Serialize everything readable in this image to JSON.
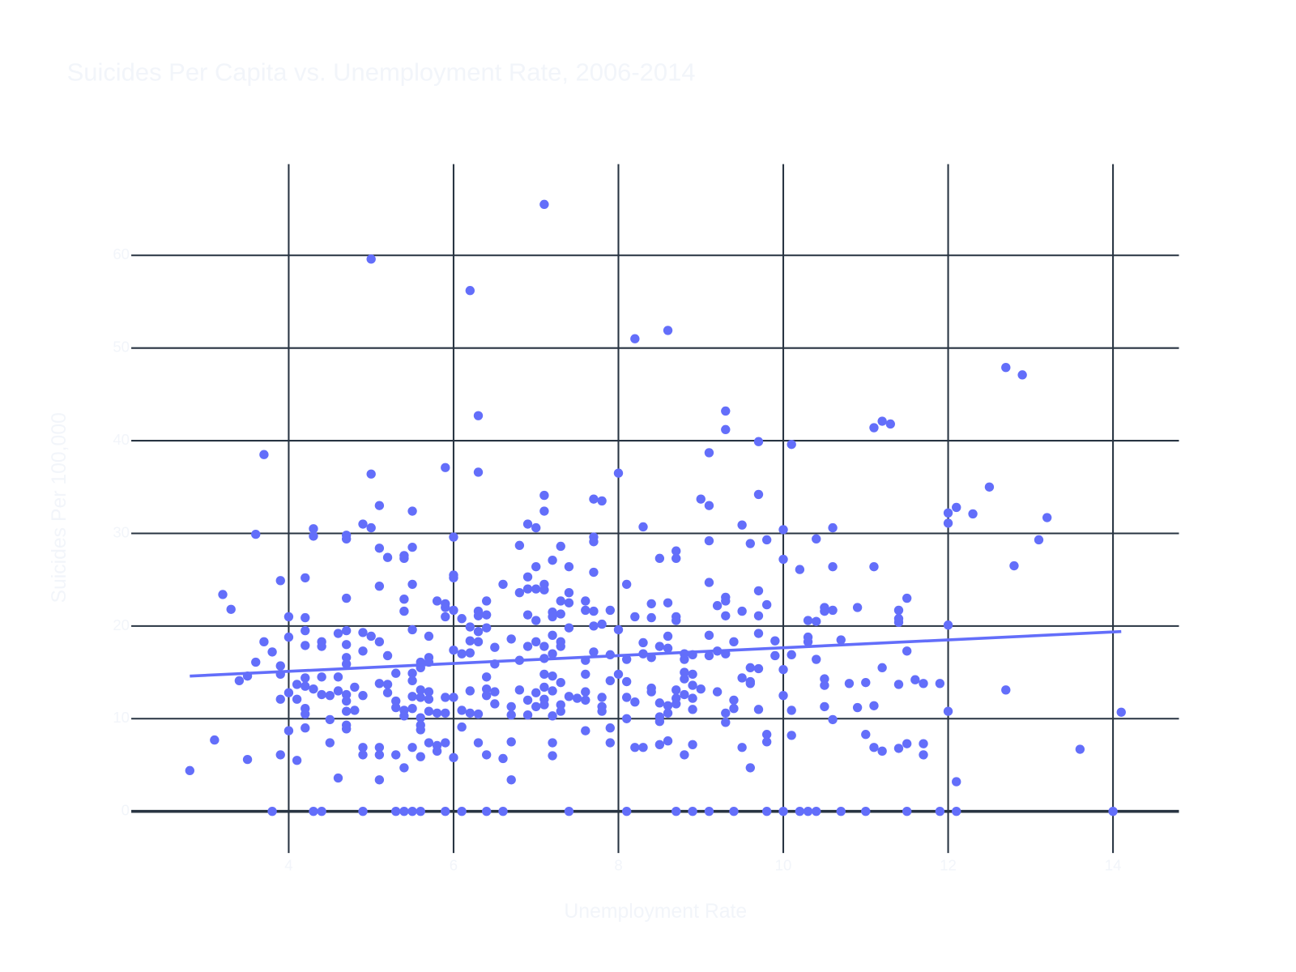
{
  "chart_data": {
    "type": "scatter",
    "title": "Suicides Per Capita vs. Unemployment Rate, 2006-2014",
    "x_label": "Unemployment Rate",
    "y_label": "Suicides Per 100,000",
    "color": "#636efa",
    "grid": true,
    "xlim": [
      2.09,
      14.8
    ],
    "ylim": [
      -4.5,
      69.85
    ],
    "xticks": [
      4,
      6,
      8,
      10,
      12,
      14
    ],
    "yticks": [
      0,
      10,
      20,
      30,
      40,
      50,
      60
    ],
    "trendline": {
      "x": [
        2.8,
        14.1
      ],
      "y": [
        14.6,
        19.4
      ]
    },
    "x": [
      2.8,
      3.1,
      3.2,
      3.3,
      3.4,
      3.5,
      3.5,
      3.6,
      3.6,
      3.7,
      3.7,
      3.8,
      3.8,
      3.9,
      3.9,
      3.9,
      3.9,
      3.9,
      4.0,
      4.0,
      4.0,
      4.0,
      4.1,
      4.1,
      4.1,
      4.2,
      4.2,
      4.2,
      4.2,
      4.2,
      4.2,
      4.2,
      4.2,
      4.2,
      4.3,
      4.3,
      4.3,
      4.3,
      4.4,
      4.4,
      4.4,
      4.4,
      4.4,
      4.5,
      4.5,
      4.5,
      4.6,
      4.6,
      4.6,
      4.6,
      4.7,
      4.7,
      4.7,
      4.7,
      4.7,
      4.7,
      4.7,
      4.7,
      4.7,
      4.7,
      4.7,
      4.7,
      4.8,
      4.8,
      4.9,
      4.9,
      4.9,
      4.9,
      4.9,
      4.9,
      4.9,
      5.0,
      5.0,
      5.0,
      5.0,
      5.1,
      5.1,
      5.1,
      5.1,
      5.1,
      5.1,
      5.1,
      5.1,
      5.2,
      5.2,
      5.2,
      5.2,
      5.3,
      5.3,
      5.3,
      5.3,
      5.3,
      5.4,
      5.4,
      5.4,
      5.4,
      5.4,
      5.4,
      5.4,
      5.4,
      5.5,
      5.5,
      5.5,
      5.5,
      5.5,
      5.5,
      5.5,
      5.5,
      5.5,
      5.5,
      5.6,
      5.6,
      5.6,
      5.6,
      5.6,
      5.6,
      5.6,
      5.6,
      5.6,
      5.7,
      5.7,
      5.7,
      5.7,
      5.7,
      5.7,
      5.7,
      5.8,
      5.8,
      5.8,
      5.8,
      5.9,
      5.9,
      5.9,
      5.9,
      5.9,
      5.9,
      5.9,
      5.9,
      6.0,
      6.0,
      6.0,
      6.0,
      6.0,
      6.0,
      6.0,
      6.1,
      6.1,
      6.1,
      6.1,
      6.1,
      6.2,
      6.2,
      6.2,
      6.2,
      6.2,
      6.2,
      6.3,
      6.3,
      6.3,
      6.3,
      6.3,
      6.3,
      6.3,
      6.3,
      6.4,
      6.4,
      6.4,
      6.4,
      6.4,
      6.4,
      6.4,
      6.4,
      6.5,
      6.5,
      6.5,
      6.5,
      6.6,
      6.6,
      6.6,
      6.7,
      6.7,
      6.7,
      6.7,
      6.7,
      6.8,
      6.8,
      6.8,
      6.8,
      6.9,
      6.9,
      6.9,
      6.9,
      6.9,
      6.9,
      6.9,
      7.0,
      7.0,
      7.0,
      7.0,
      7.0,
      7.0,
      7.0,
      7.1,
      7.1,
      7.1,
      7.1,
      7.1,
      7.1,
      7.1,
      7.1,
      7.1,
      7.1,
      7.1,
      7.2,
      7.2,
      7.2,
      7.2,
      7.2,
      7.2,
      7.2,
      7.2,
      7.2,
      7.2,
      7.3,
      7.3,
      7.3,
      7.3,
      7.3,
      7.3,
      7.3,
      7.3,
      7.4,
      7.4,
      7.4,
      7.4,
      7.4,
      7.4,
      7.5,
      7.6,
      7.6,
      7.6,
      7.6,
      7.6,
      7.6,
      7.6,
      7.7,
      7.7,
      7.7,
      7.7,
      7.7,
      7.7,
      7.7,
      7.8,
      7.8,
      7.8,
      7.8,
      7.8,
      7.9,
      7.9,
      7.9,
      7.9,
      7.9,
      8.0,
      8.0,
      8.0,
      8.1,
      8.1,
      8.1,
      8.1,
      8.1,
      8.1,
      8.2,
      8.2,
      8.2,
      8.2,
      8.3,
      8.3,
      8.3,
      8.3,
      8.4,
      8.4,
      8.4,
      8.4,
      8.4,
      8.5,
      8.5,
      8.5,
      8.5,
      8.5,
      8.5,
      8.6,
      8.6,
      8.6,
      8.6,
      8.6,
      8.6,
      8.6,
      8.7,
      8.7,
      8.7,
      8.7,
      8.7,
      8.7,
      8.7,
      8.7,
      8.8,
      8.8,
      8.8,
      8.8,
      8.8,
      8.8,
      8.9,
      8.9,
      8.9,
      8.9,
      8.9,
      8.9,
      8.9,
      9.0,
      9.0,
      9.1,
      9.1,
      9.1,
      9.1,
      9.1,
      9.1,
      9.1,
      9.2,
      9.2,
      9.2,
      9.3,
      9.3,
      9.3,
      9.3,
      9.3,
      9.3,
      9.3,
      9.3,
      9.4,
      9.4,
      9.4,
      9.4,
      9.5,
      9.5,
      9.5,
      9.5,
      9.6,
      9.6,
      9.6,
      9.6,
      9.6,
      9.7,
      9.7,
      9.7,
      9.7,
      9.7,
      9.7,
      9.7,
      9.8,
      9.8,
      9.8,
      9.8,
      9.8,
      9.9,
      9.9,
      10.0,
      10.0,
      10.0,
      10.0,
      10.0,
      10.1,
      10.1,
      10.1,
      10.1,
      10.2,
      10.2,
      10.3,
      10.3,
      10.3,
      10.3,
      10.4,
      10.4,
      10.4,
      10.4,
      10.5,
      10.5,
      10.5,
      10.5,
      10.5,
      10.6,
      10.6,
      10.6,
      10.6,
      10.7,
      10.7,
      10.8,
      10.9,
      10.9,
      11.0,
      11.0,
      11.0,
      11.1,
      11.1,
      11.1,
      11.1,
      11.2,
      11.2,
      11.2,
      11.3,
      11.4,
      11.4,
      11.4,
      11.4,
      11.4,
      11.5,
      11.5,
      11.5,
      11.5,
      11.6,
      11.7,
      11.7,
      11.7,
      11.9,
      11.9,
      12.0,
      12.0,
      12.0,
      12.0,
      12.1,
      12.1,
      12.1,
      12.3,
      12.5,
      12.7,
      12.7,
      12.8,
      12.9,
      13.1,
      13.2,
      13.6,
      14.0,
      14.1
    ],
    "values": [
      4.4,
      7.7,
      23.4,
      21.8,
      14.1,
      14.6,
      5.6,
      16.1,
      29.9,
      38.5,
      18.3,
      17.2,
      0,
      24.9,
      15.7,
      14.8,
      12.1,
      6.1,
      21.0,
      18.8,
      12.8,
      8.7,
      13.7,
      12.1,
      5.5,
      25.2,
      20.9,
      19.5,
      17.9,
      14.4,
      13.5,
      11.1,
      10.5,
      9.0,
      30.5,
      29.7,
      13.2,
      0,
      18.3,
      17.8,
      14.5,
      12.6,
      0,
      12.5,
      9.9,
      7.4,
      19.2,
      14.5,
      13.0,
      3.6,
      29.8,
      29.4,
      23.0,
      19.5,
      18.0,
      16.6,
      15.9,
      12.6,
      11.9,
      10.8,
      9.3,
      8.9,
      13.4,
      10.9,
      31.0,
      19.3,
      17.3,
      12.5,
      6.9,
      6.1,
      0,
      59.6,
      36.4,
      30.6,
      18.9,
      33.0,
      28.4,
      24.3,
      18.3,
      13.8,
      6.9,
      6.1,
      3.4,
      27.4,
      16.8,
      13.7,
      12.8,
      14.9,
      11.9,
      11.2,
      6.1,
      0,
      27.6,
      27.3,
      22.9,
      21.6,
      10.9,
      10.3,
      4.7,
      0,
      32.4,
      28.5,
      24.5,
      19.6,
      14.9,
      14.1,
      12.4,
      11.1,
      6.9,
      0,
      16.1,
      15.5,
      13.1,
      12.3,
      10.1,
      9.3,
      8.8,
      5.9,
      0,
      18.9,
      16.6,
      16.1,
      12.9,
      12.1,
      10.8,
      7.4,
      22.7,
      10.6,
      7.1,
      6.5,
      37.1,
      22.4,
      22.0,
      21.0,
      12.3,
      10.6,
      7.4,
      0,
      29.6,
      25.5,
      25.2,
      21.7,
      17.4,
      12.3,
      5.8,
      20.8,
      17.0,
      10.9,
      9.1,
      0,
      56.2,
      19.9,
      18.4,
      17.1,
      13.0,
      10.6,
      42.7,
      36.6,
      21.6,
      21.1,
      19.4,
      18.3,
      10.5,
      7.4,
      22.7,
      21.2,
      19.8,
      14.5,
      13.2,
      12.5,
      6.1,
      0,
      17.7,
      15.9,
      12.9,
      11.6,
      24.5,
      5.7,
      0,
      18.6,
      11.3,
      10.4,
      7.5,
      3.4,
      28.7,
      23.6,
      16.3,
      13.1,
      31.0,
      25.3,
      24.0,
      21.2,
      17.8,
      12.0,
      10.4,
      30.6,
      26.4,
      24.0,
      20.6,
      18.3,
      12.8,
      11.3,
      65.5,
      34.1,
      32.4,
      24.5,
      23.9,
      17.8,
      16.5,
      14.8,
      13.4,
      12.1,
      11.5,
      27.1,
      21.5,
      21.0,
      19.0,
      17.0,
      14.6,
      13.0,
      10.3,
      7.4,
      6.0,
      28.6,
      22.7,
      21.3,
      18.3,
      17.8,
      13.9,
      11.5,
      10.8,
      26.4,
      23.6,
      22.5,
      19.8,
      12.4,
      0,
      12.2,
      22.7,
      21.7,
      16.3,
      14.8,
      12.9,
      12.0,
      8.7,
      33.7,
      29.6,
      29.1,
      25.8,
      21.6,
      20.0,
      17.2,
      33.5,
      20.2,
      12.3,
      11.3,
      10.8,
      21.7,
      16.9,
      14.1,
      9.0,
      7.4,
      36.5,
      19.6,
      14.8,
      24.5,
      16.4,
      14.0,
      12.3,
      10.0,
      0,
      51.0,
      21.0,
      11.8,
      6.9,
      30.7,
      18.2,
      17.0,
      6.9,
      22.4,
      20.9,
      16.6,
      13.3,
      12.9,
      27.3,
      17.8,
      11.7,
      10.2,
      9.7,
      7.2,
      51.9,
      22.5,
      18.9,
      17.6,
      11.4,
      10.6,
      7.6,
      28.1,
      27.3,
      21.0,
      20.6,
      13.1,
      12.2,
      11.6,
      0,
      17.0,
      16.4,
      15.0,
      14.3,
      12.6,
      6.1,
      16.9,
      14.8,
      13.6,
      12.2,
      11.0,
      7.2,
      0,
      33.7,
      13.2,
      38.7,
      33.0,
      29.2,
      24.7,
      19.0,
      16.8,
      0,
      22.2,
      17.3,
      12.9,
      43.2,
      41.2,
      23.1,
      22.7,
      21.1,
      17.0,
      10.6,
      9.6,
      18.3,
      12.0,
      11.1,
      0,
      30.9,
      21.6,
      14.4,
      6.9,
      28.9,
      15.5,
      14.0,
      13.8,
      4.7,
      39.9,
      34.2,
      23.8,
      21.1,
      19.2,
      15.4,
      11.0,
      29.3,
      22.3,
      8.3,
      7.5,
      0,
      18.4,
      16.8,
      30.4,
      27.2,
      15.3,
      12.5,
      0,
      39.6,
      16.9,
      10.9,
      8.2,
      26.1,
      0,
      20.6,
      18.8,
      18.3,
      0,
      29.4,
      20.5,
      16.4,
      0,
      22.0,
      21.6,
      14.3,
      13.6,
      11.3,
      30.6,
      26.4,
      21.7,
      9.9,
      18.5,
      0,
      13.8,
      22.0,
      11.2,
      13.9,
      8.3,
      0,
      41.4,
      26.4,
      11.4,
      6.9,
      42.1,
      15.5,
      6.5,
      41.8,
      21.7,
      20.8,
      20.4,
      13.7,
      6.8,
      23.0,
      17.3,
      7.3,
      0,
      14.2,
      13.8,
      7.3,
      6.1,
      13.8,
      0,
      32.2,
      31.1,
      20.1,
      10.8,
      32.8,
      3.2,
      0,
      32.1,
      35.0,
      47.9,
      13.1,
      26.5,
      47.1,
      29.3,
      31.7,
      6.7,
      0,
      10.7
    ]
  }
}
